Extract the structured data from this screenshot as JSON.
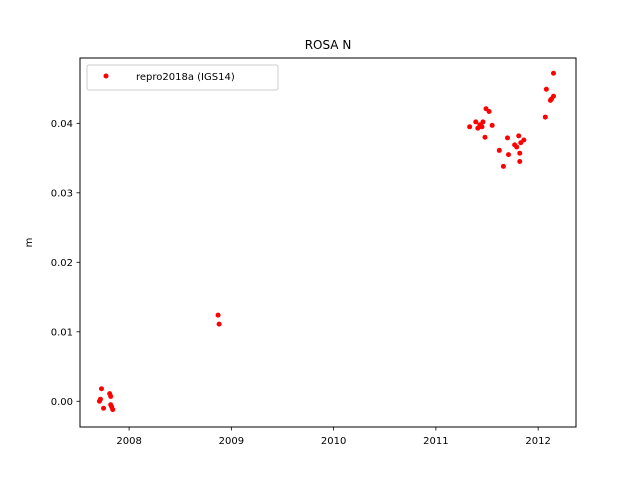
{
  "chart_data": {
    "type": "scatter",
    "title": "ROSA N",
    "xlabel": "",
    "ylabel": "m",
    "xlim": [
      2007.52,
      2012.37
    ],
    "ylim": [
      -0.0037,
      0.0494
    ],
    "xticks": [
      2008,
      2009,
      2010,
      2011,
      2012
    ],
    "xtick_labels": [
      "2008",
      "2009",
      "2010",
      "2011",
      "2012"
    ],
    "yticks": [
      0.0,
      0.01,
      0.02,
      0.03,
      0.04
    ],
    "ytick_labels": [
      "0.00",
      "0.01",
      "0.02",
      "0.03",
      "0.04"
    ],
    "grid": false,
    "legend_position": "top-left",
    "series": [
      {
        "name": "repro2018a (IGS14)",
        "color": "#ff0000",
        "marker": "circle",
        "points": [
          {
            "x": 2007.71,
            "y": 0.0
          },
          {
            "x": 2007.72,
            "y": 0.0003
          },
          {
            "x": 2007.73,
            "y": 0.0018
          },
          {
            "x": 2007.75,
            "y": -0.001
          },
          {
            "x": 2007.81,
            "y": 0.0011
          },
          {
            "x": 2007.82,
            "y": 0.0007
          },
          {
            "x": 2007.82,
            "y": -0.0005
          },
          {
            "x": 2007.83,
            "y": -0.0008
          },
          {
            "x": 2007.84,
            "y": -0.0012
          },
          {
            "x": 2008.87,
            "y": 0.0124
          },
          {
            "x": 2008.88,
            "y": 0.0111
          },
          {
            "x": 2011.33,
            "y": 0.0395
          },
          {
            "x": 2011.39,
            "y": 0.0402
          },
          {
            "x": 2011.41,
            "y": 0.0393
          },
          {
            "x": 2011.43,
            "y": 0.0398
          },
          {
            "x": 2011.45,
            "y": 0.0395
          },
          {
            "x": 2011.46,
            "y": 0.0402
          },
          {
            "x": 2011.48,
            "y": 0.038
          },
          {
            "x": 2011.49,
            "y": 0.0421
          },
          {
            "x": 2011.52,
            "y": 0.0417
          },
          {
            "x": 2011.55,
            "y": 0.0397
          },
          {
            "x": 2011.62,
            "y": 0.0361
          },
          {
            "x": 2011.66,
            "y": 0.0338
          },
          {
            "x": 2011.7,
            "y": 0.0379
          },
          {
            "x": 2011.71,
            "y": 0.0355
          },
          {
            "x": 2011.77,
            "y": 0.0369
          },
          {
            "x": 2011.79,
            "y": 0.0366
          },
          {
            "x": 2011.81,
            "y": 0.0382
          },
          {
            "x": 2011.82,
            "y": 0.0357
          },
          {
            "x": 2011.82,
            "y": 0.0345
          },
          {
            "x": 2011.83,
            "y": 0.0372
          },
          {
            "x": 2011.86,
            "y": 0.0376
          },
          {
            "x": 2012.07,
            "y": 0.0409
          },
          {
            "x": 2012.08,
            "y": 0.0449
          },
          {
            "x": 2012.12,
            "y": 0.0433
          },
          {
            "x": 2012.13,
            "y": 0.0435
          },
          {
            "x": 2012.15,
            "y": 0.0439
          },
          {
            "x": 2012.15,
            "y": 0.0472
          }
        ]
      }
    ]
  }
}
